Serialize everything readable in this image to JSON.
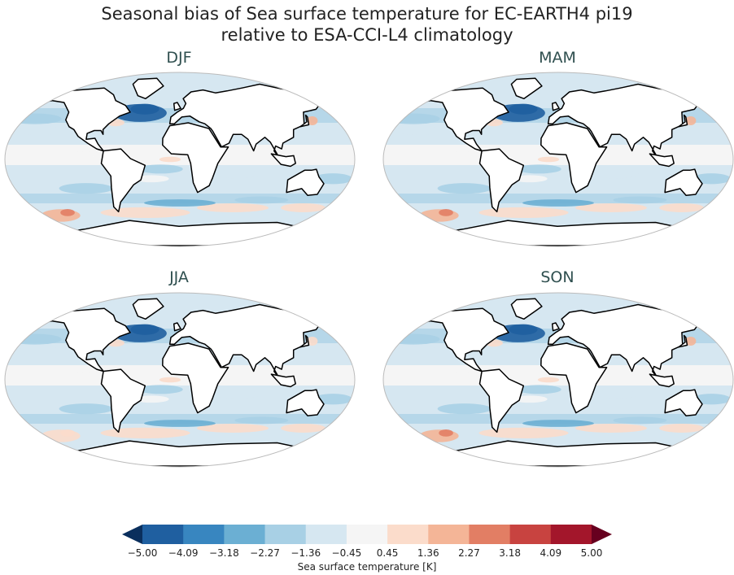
{
  "title": {
    "line1": "Seasonal bias of Sea surface temperature for EC-EARTH4 pi19",
    "line2": "relative to ESA-CCI-L4 climatology"
  },
  "panels": [
    {
      "label": "DJF"
    },
    {
      "label": "MAM"
    },
    {
      "label": "JJA"
    },
    {
      "label": "SON"
    }
  ],
  "colorbar": {
    "label": "Sea surface temperature [K]",
    "ticks": [
      "−5.00",
      "−4.09",
      "−3.18",
      "−2.27",
      "−1.36",
      "−0.45",
      "0.45",
      "1.36",
      "2.27",
      "3.18",
      "4.09",
      "5.00"
    ],
    "colors": [
      "#1f5fa0",
      "#3886c0",
      "#6bafd3",
      "#a8d0e5",
      "#d6e7f1",
      "#f5f5f5",
      "#fbdccb",
      "#f4b597",
      "#e27e64",
      "#c84340",
      "#a3162b"
    ],
    "under_color": "#0a2f5d",
    "over_color": "#67001f",
    "extend": "both",
    "range": [
      -5.0,
      5.0
    ]
  }
}
